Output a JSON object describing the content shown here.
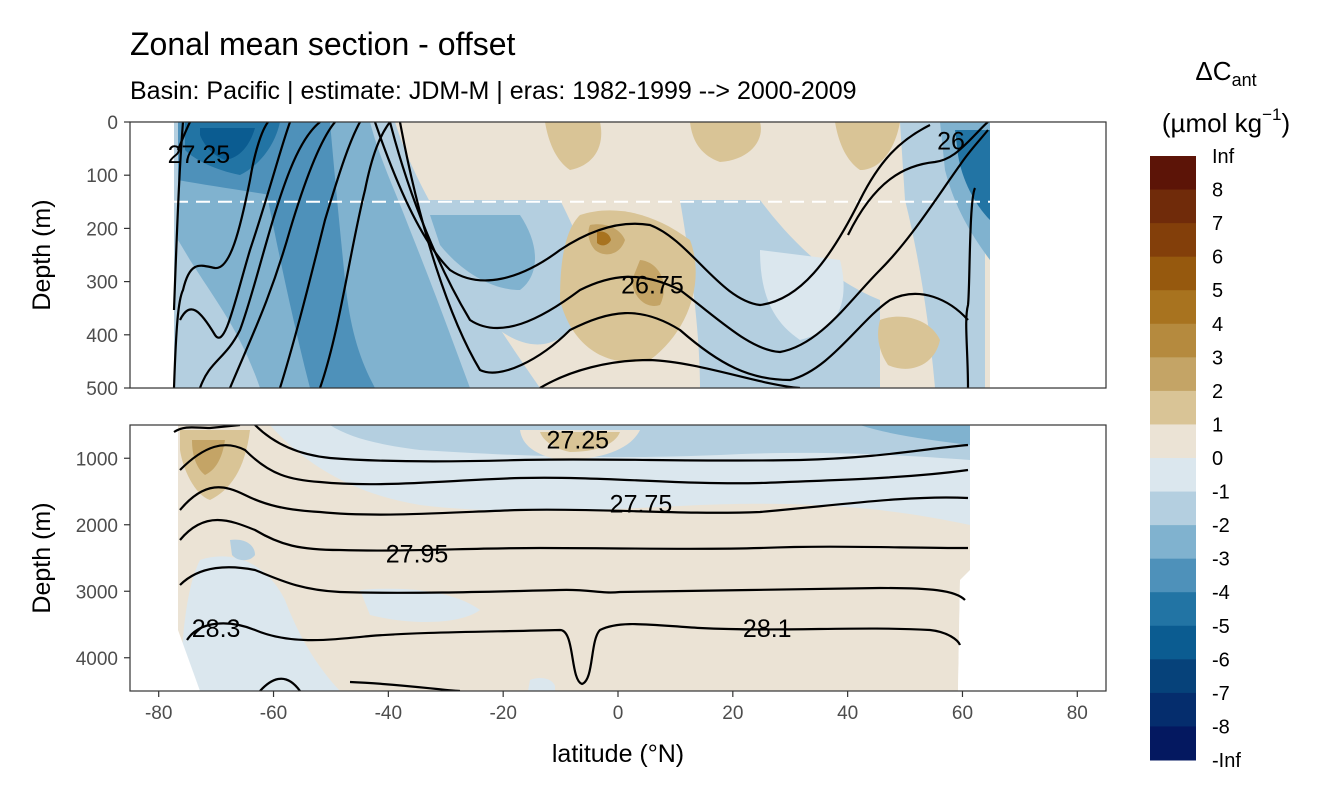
{
  "chart_data": {
    "type": "heatmap",
    "title": "Zonal mean section - offset",
    "subtitle": "Basin: Pacific | estimate: JDM-M | eras: 1982-1999 --> 2000-2009",
    "xlabel": "latitude (°N)",
    "ylabel": "Depth (m)",
    "xlim": [
      -85,
      85
    ],
    "x_ticks": [
      "-80",
      "-60",
      "-40",
      "-20",
      "0",
      "20",
      "40",
      "60",
      "80"
    ],
    "grid": true,
    "panels": [
      {
        "name": "upper",
        "ylim": [
          0,
          500
        ],
        "y_ticks": [
          "0",
          "100",
          "200",
          "300",
          "400",
          "500"
        ],
        "reference_depth": 150,
        "contour_labels": [
          {
            "text": "27.25",
            "lat": -73,
            "depth": 60
          },
          {
            "text": "26.75",
            "lat": 6,
            "depth": 305
          },
          {
            "text": "26",
            "lat": 58,
            "depth": 35
          }
        ]
      },
      {
        "name": "lower",
        "ylim": [
          500,
          4500
        ],
        "y_ticks": [
          "1000",
          "2000",
          "3000",
          "4000"
        ],
        "contour_labels": [
          {
            "text": "27.25",
            "lat": -7,
            "depth": 720
          },
          {
            "text": "27.75",
            "lat": 4,
            "depth": 1680
          },
          {
            "text": "27.95",
            "lat": -35,
            "depth": 2430
          },
          {
            "text": "28.3",
            "lat": -70,
            "depth": 3550
          },
          {
            "text": "28.1",
            "lat": 26,
            "depth": 3550
          }
        ]
      }
    ],
    "legend": {
      "title": "ΔC",
      "title_subscript": "ant",
      "unit_prefix": "(µmol kg",
      "unit_superscript": "−1",
      "unit_suffix": ")",
      "placement": "right",
      "bins": [
        {
          "label": "Inf",
          "color": "#5c1407"
        },
        {
          "label": "8",
          "color": "#702b0a"
        },
        {
          "label": "7",
          "color": "#833f0a"
        },
        {
          "label": "6",
          "color": "#96590e"
        },
        {
          "label": "5",
          "color": "#a8731f"
        },
        {
          "label": "4",
          "color": "#b58a3e"
        },
        {
          "label": "3",
          "color": "#c4a466"
        },
        {
          "label": "2",
          "color": "#d9c496"
        },
        {
          "label": "1",
          "color": "#ebe3d5"
        },
        {
          "label": "0",
          "color": "#dbe7ee"
        },
        {
          "label": "-1",
          "color": "#b4cfe0"
        },
        {
          "label": "-2",
          "color": "#80b2cf"
        },
        {
          "label": "-3",
          "color": "#4e91ba"
        },
        {
          "label": "-4",
          "color": "#2274a4"
        },
        {
          "label": "-5",
          "color": "#0b5c91"
        },
        {
          "label": "-6",
          "color": "#06427a"
        },
        {
          "label": "-7",
          "color": "#052d6d"
        },
        {
          "label": "-8",
          "color": "#041860"
        }
      ],
      "bottom_label": "-Inf"
    }
  }
}
